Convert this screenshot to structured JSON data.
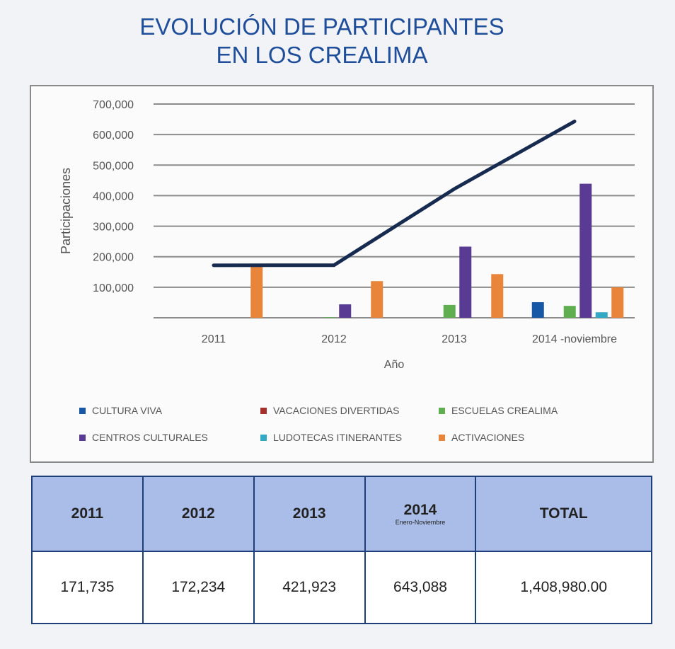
{
  "chart_data": {
    "type": "bar+line",
    "title": "EVOLUCIÓN DE PARTICIPANTES EN LOS CREALIMA",
    "title_lines": [
      "EVOLUCIÓN DE PARTICIPANTES",
      "EN LOS CREALIMA"
    ],
    "xlabel": "Año",
    "ylabel": "Participaciones",
    "categories": [
      "2011",
      "2012",
      "2013",
      "2014 -noviembre"
    ],
    "ylim": [
      0,
      700000
    ],
    "yticks": [
      "700,000",
      "600,000",
      "500,000",
      "400,000",
      "300,000",
      "200,000",
      "100,000"
    ],
    "grid": true,
    "legend_position": "bottom",
    "series": [
      {
        "name": "CULTURA VIVA",
        "color": "#1657a6",
        "values": [
          0,
          0,
          0,
          51000
        ]
      },
      {
        "name": "VACACIONES DIVERTIDAS",
        "color": "#a3302a",
        "values": [
          0,
          0,
          0,
          0
        ]
      },
      {
        "name": "ESCUELAS CREALIMA",
        "color": "#5fae4f",
        "values": [
          0,
          2000,
          42000,
          39000
        ]
      },
      {
        "name": "CENTROS CULTURALES",
        "color": "#5a3b93",
        "values": [
          0,
          44000,
          233000,
          439000
        ]
      },
      {
        "name": "LUDOTECAS ITINERANTES",
        "color": "#32a8c4",
        "values": [
          0,
          0,
          0,
          18000
        ]
      },
      {
        "name": "ACTIVACIONES",
        "color": "#e8853a",
        "values": [
          170000,
          120000,
          143000,
          100000
        ]
      }
    ],
    "total_line": {
      "color": "#172a4f",
      "values": [
        171735,
        172234,
        421923,
        643088
      ]
    }
  },
  "table": {
    "headers": [
      {
        "label": "2011"
      },
      {
        "label": "2012"
      },
      {
        "label": "2013"
      },
      {
        "label": "2014",
        "sub": "Enero-Noviembre"
      },
      {
        "label": "TOTAL"
      }
    ],
    "values": [
      "171,735",
      "172,234",
      "421,923",
      "643,088",
      "1,408,980.00"
    ]
  }
}
